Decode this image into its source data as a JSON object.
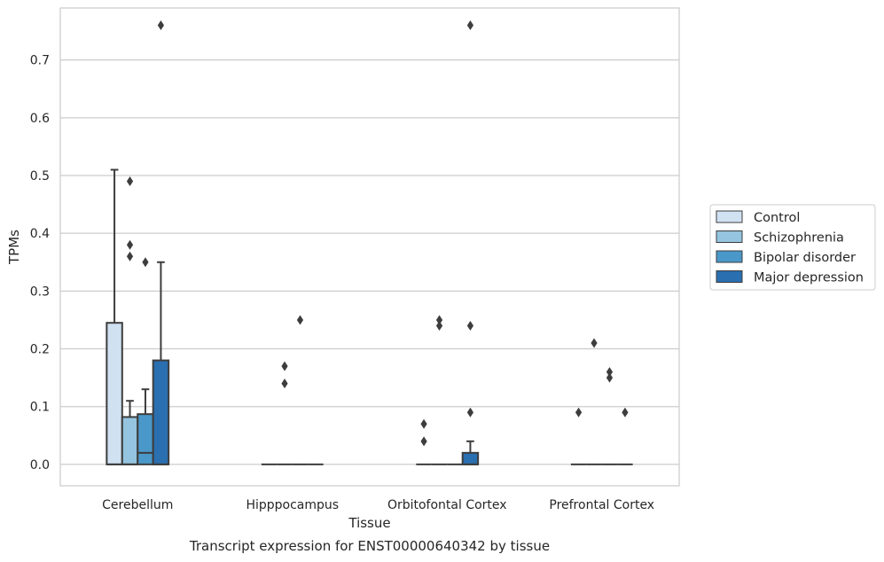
{
  "chart_data": {
    "type": "box",
    "title": "",
    "caption": "Transcript expression for ENST00000640342 by tissue",
    "xlabel": "Tissue",
    "ylabel": "TPMs",
    "ylim": [
      -0.037,
      0.79
    ],
    "yticks": [
      "0.0",
      "0.1",
      "0.2",
      "0.3",
      "0.4",
      "0.5",
      "0.6",
      "0.7"
    ],
    "grid": "horizontal",
    "legend_position": "right",
    "categories": [
      "Cerebellum",
      "Hipppocampus",
      "Orbitofontal Cortex",
      "Prefrontal Cortex"
    ],
    "series": [
      {
        "name": "Control",
        "color": "#d0e1f2",
        "boxes": [
          {
            "q1": 0.0,
            "median": 0.0,
            "q3": 0.245,
            "whisker_low": 0.0,
            "whisker_high": 0.51,
            "outliers": []
          },
          {
            "q1": 0.0,
            "median": 0.0,
            "q3": 0.0,
            "whisker_low": 0.0,
            "whisker_high": 0.0,
            "outliers": []
          },
          {
            "q1": 0.0,
            "median": 0.0,
            "q3": 0.0,
            "whisker_low": 0.0,
            "whisker_high": 0.0,
            "outliers": [
              0.07,
              0.04
            ]
          },
          {
            "q1": 0.0,
            "median": 0.0,
            "q3": 0.0,
            "whisker_low": 0.0,
            "whisker_high": 0.0,
            "outliers": [
              0.09
            ]
          }
        ]
      },
      {
        "name": "Schizophrenia",
        "color": "#94c4df",
        "boxes": [
          {
            "q1": 0.0,
            "median": 0.0,
            "q3": 0.082,
            "whisker_low": 0.0,
            "whisker_high": 0.11,
            "outliers": [
              0.49,
              0.38,
              0.36
            ]
          },
          {
            "q1": 0.0,
            "median": 0.0,
            "q3": 0.0,
            "whisker_low": 0.0,
            "whisker_high": 0.0,
            "outliers": [
              0.17,
              0.14
            ]
          },
          {
            "q1": 0.0,
            "median": 0.0,
            "q3": 0.0,
            "whisker_low": 0.0,
            "whisker_high": 0.0,
            "outliers": [
              0.25,
              0.24
            ]
          },
          {
            "q1": 0.0,
            "median": 0.0,
            "q3": 0.0,
            "whisker_low": 0.0,
            "whisker_high": 0.0,
            "outliers": [
              0.21
            ]
          }
        ]
      },
      {
        "name": "Bipolar disorder",
        "color": "#4a98c9",
        "boxes": [
          {
            "q1": 0.0,
            "median": 0.02,
            "q3": 0.087,
            "whisker_low": 0.0,
            "whisker_high": 0.13,
            "outliers": [
              0.35
            ]
          },
          {
            "q1": 0.0,
            "median": 0.0,
            "q3": 0.0,
            "whisker_low": 0.0,
            "whisker_high": 0.0,
            "outliers": [
              0.25
            ]
          },
          {
            "q1": 0.0,
            "median": 0.0,
            "q3": 0.0,
            "whisker_low": 0.0,
            "whisker_high": 0.0,
            "outliers": []
          },
          {
            "q1": 0.0,
            "median": 0.0,
            "q3": 0.0,
            "whisker_low": 0.0,
            "whisker_high": 0.0,
            "outliers": [
              0.16,
              0.15
            ]
          }
        ]
      },
      {
        "name": "Major depression",
        "color": "#2a6fb0",
        "boxes": [
          {
            "q1": 0.0,
            "median": 0.0,
            "q3": 0.18,
            "whisker_low": 0.0,
            "whisker_high": 0.35,
            "outliers": [
              0.76
            ]
          },
          {
            "q1": 0.0,
            "median": 0.0,
            "q3": 0.0,
            "whisker_low": 0.0,
            "whisker_high": 0.0,
            "outliers": []
          },
          {
            "q1": 0.0,
            "median": 0.0,
            "q3": 0.02,
            "whisker_low": 0.0,
            "whisker_high": 0.04,
            "outliers": [
              0.76,
              0.24,
              0.09
            ]
          },
          {
            "q1": 0.0,
            "median": 0.0,
            "q3": 0.0,
            "whisker_low": 0.0,
            "whisker_high": 0.0,
            "outliers": [
              0.09
            ]
          }
        ]
      }
    ]
  }
}
